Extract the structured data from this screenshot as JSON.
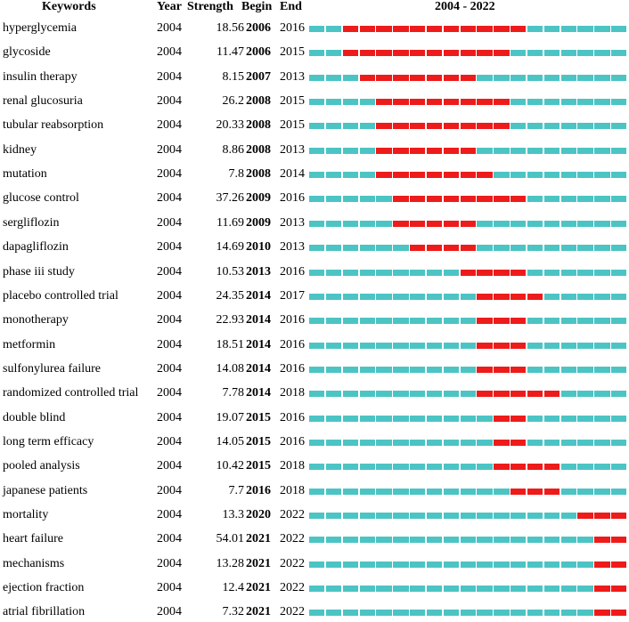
{
  "header": {
    "keywords": "Keywords",
    "year": "Year",
    "strength": "Strength",
    "begin": "Begin",
    "end": "End",
    "range": "2004 - 2022"
  },
  "colors": {
    "burst": "#ee1b1b",
    "base": "#4cc4c4"
  },
  "chart_data": {
    "type": "table",
    "title": "",
    "timeline": {
      "start": 2004,
      "end": 2022
    },
    "columns": [
      "Keywords",
      "Year",
      "Strength",
      "Begin",
      "End"
    ],
    "rows": [
      {
        "keyword": "hyperglycemia",
        "year": "2004",
        "strength": "18.56",
        "begin": "2006",
        "end": "2016"
      },
      {
        "keyword": "glycoside",
        "year": "2004",
        "strength": "11.47",
        "begin": "2006",
        "end": "2015"
      },
      {
        "keyword": "insulin therapy",
        "year": "2004",
        "strength": "8.15",
        "begin": "2007",
        "end": "2013"
      },
      {
        "keyword": "renal glucosuria",
        "year": "2004",
        "strength": "26.2",
        "begin": "2008",
        "end": "2015"
      },
      {
        "keyword": "tubular reabsorption",
        "year": "2004",
        "strength": "20.33",
        "begin": "2008",
        "end": "2015"
      },
      {
        "keyword": "kidney",
        "year": "2004",
        "strength": "8.86",
        "begin": "2008",
        "end": "2013"
      },
      {
        "keyword": "mutation",
        "year": "2004",
        "strength": "7.8",
        "begin": "2008",
        "end": "2014"
      },
      {
        "keyword": "glucose control",
        "year": "2004",
        "strength": "37.26",
        "begin": "2009",
        "end": "2016"
      },
      {
        "keyword": "sergliflozin",
        "year": "2004",
        "strength": "11.69",
        "begin": "2009",
        "end": "2013"
      },
      {
        "keyword": "dapagliflozin",
        "year": "2004",
        "strength": "14.69",
        "begin": "2010",
        "end": "2013"
      },
      {
        "keyword": "phase iii study",
        "year": "2004",
        "strength": "10.53",
        "begin": "2013",
        "end": "2016"
      },
      {
        "keyword": "placebo controlled trial",
        "year": "2004",
        "strength": "24.35",
        "begin": "2014",
        "end": "2017"
      },
      {
        "keyword": "monotherapy",
        "year": "2004",
        "strength": "22.93",
        "begin": "2014",
        "end": "2016"
      },
      {
        "keyword": "metformin",
        "year": "2004",
        "strength": "18.51",
        "begin": "2014",
        "end": "2016"
      },
      {
        "keyword": "sulfonylurea failure",
        "year": "2004",
        "strength": "14.08",
        "begin": "2014",
        "end": "2016"
      },
      {
        "keyword": "randomized controlled trial",
        "year": "2004",
        "strength": "7.78",
        "begin": "2014",
        "end": "2018"
      },
      {
        "keyword": "double blind",
        "year": "2004",
        "strength": "19.07",
        "begin": "2015",
        "end": "2016"
      },
      {
        "keyword": "long term efficacy",
        "year": "2004",
        "strength": "14.05",
        "begin": "2015",
        "end": "2016"
      },
      {
        "keyword": "pooled analysis",
        "year": "2004",
        "strength": "10.42",
        "begin": "2015",
        "end": "2018"
      },
      {
        "keyword": "japanese patients",
        "year": "2004",
        "strength": "7.7",
        "begin": "2016",
        "end": "2018"
      },
      {
        "keyword": "mortality",
        "year": "2004",
        "strength": "13.3",
        "begin": "2020",
        "end": "2022"
      },
      {
        "keyword": "heart failure",
        "year": "2004",
        "strength": "54.01",
        "begin": "2021",
        "end": "2022"
      },
      {
        "keyword": "mechanisms",
        "year": "2004",
        "strength": "13.28",
        "begin": "2021",
        "end": "2022"
      },
      {
        "keyword": "ejection fraction",
        "year": "2004",
        "strength": "12.4",
        "begin": "2021",
        "end": "2022"
      },
      {
        "keyword": "atrial fibrillation",
        "year": "2004",
        "strength": "7.32",
        "begin": "2021",
        "end": "2022"
      }
    ]
  }
}
